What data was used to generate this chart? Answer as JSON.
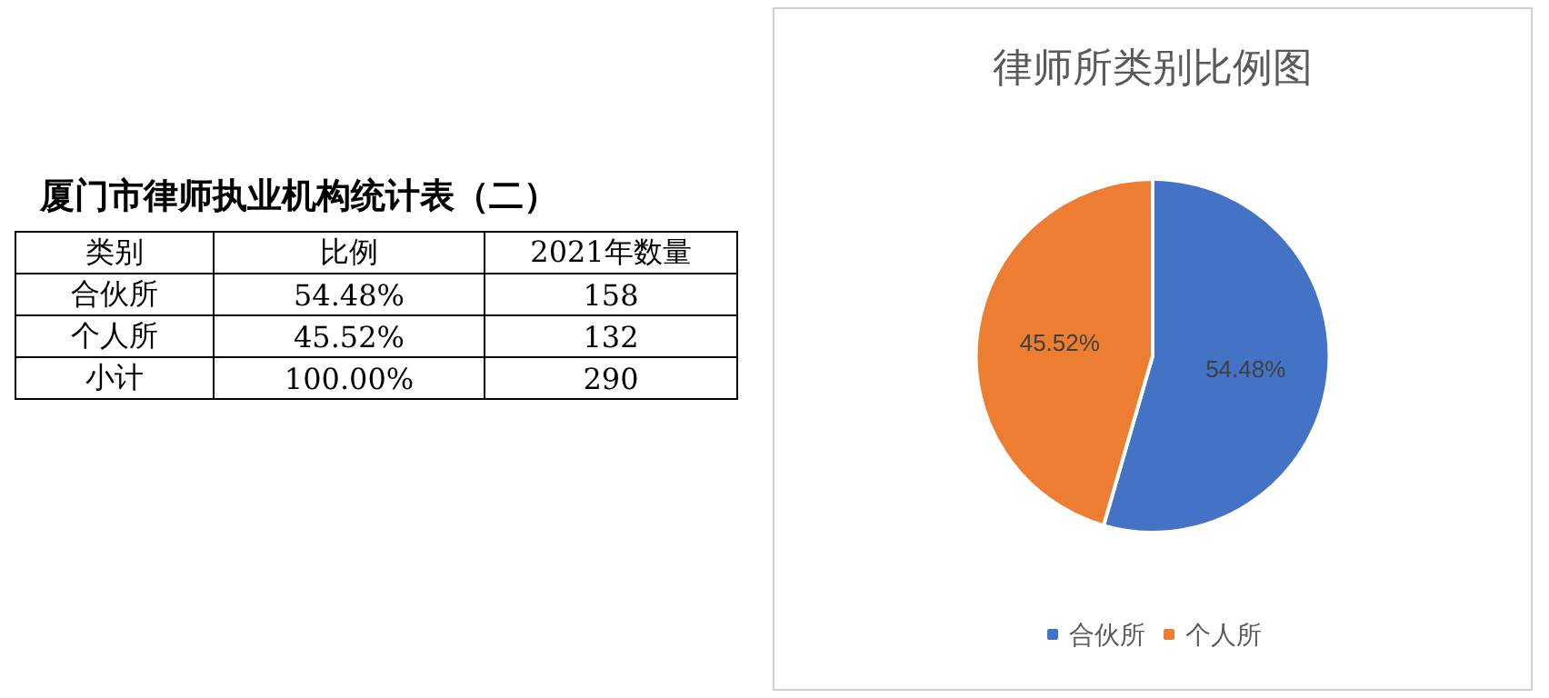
{
  "chart_data": [
    {
      "type": "other",
      "title": "厦门市律师执业机构统计表（二）",
      "annotations": [
        "类别",
        "比例",
        "2021年数量",
        "合伙所",
        "54.48%",
        "158",
        "个人所",
        "45.52%",
        "132",
        "小计",
        "100.00%",
        "290"
      ]
    },
    {
      "type": "pie",
      "title": "律师所类别比例图",
      "categories": [
        "合伙所",
        "个人所"
      ],
      "values": [
        54.48,
        45.52
      ],
      "colors": [
        "#4472c4",
        "#ed7d31"
      ],
      "value_labels": [
        "54.48%",
        "45.52%"
      ],
      "legend": "bottom"
    }
  ]
}
